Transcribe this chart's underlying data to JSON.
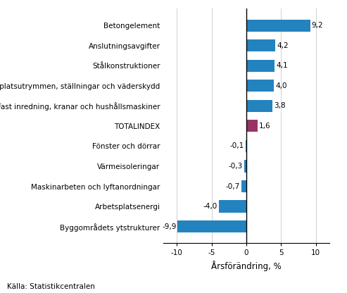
{
  "categories": [
    "Byggområdets ytstrukturer",
    "Arbetsplatsenergi",
    "Maskinarbeten och lyftanordningar",
    "Värmeisoleringar",
    "Fönster och dörrar",
    "TOTALINDEX",
    "Fast inredning, kranar och hushållsmaskiner",
    "Arbetsplatsutrymmen, ställningar och väderskydd",
    "Stålkonstruktioner",
    "Anslutningsavgifter",
    "Betongelement"
  ],
  "values": [
    -9.9,
    -4.0,
    -0.7,
    -0.3,
    -0.1,
    1.6,
    3.8,
    4.0,
    4.1,
    4.2,
    9.2
  ],
  "xlabel": "Årsförändring, %",
  "xlim": [
    -12,
    12
  ],
  "xticks": [
    -10,
    -5,
    0,
    5,
    10
  ],
  "source": "Källa: Statistikcentralen",
  "bar_color_blue": "#2383bf",
  "bar_color_purple": "#993366",
  "background_color": "#ffffff",
  "label_fontsize": 7.5,
  "value_fontsize": 7.5,
  "xlabel_fontsize": 8.5,
  "source_fontsize": 7.5
}
